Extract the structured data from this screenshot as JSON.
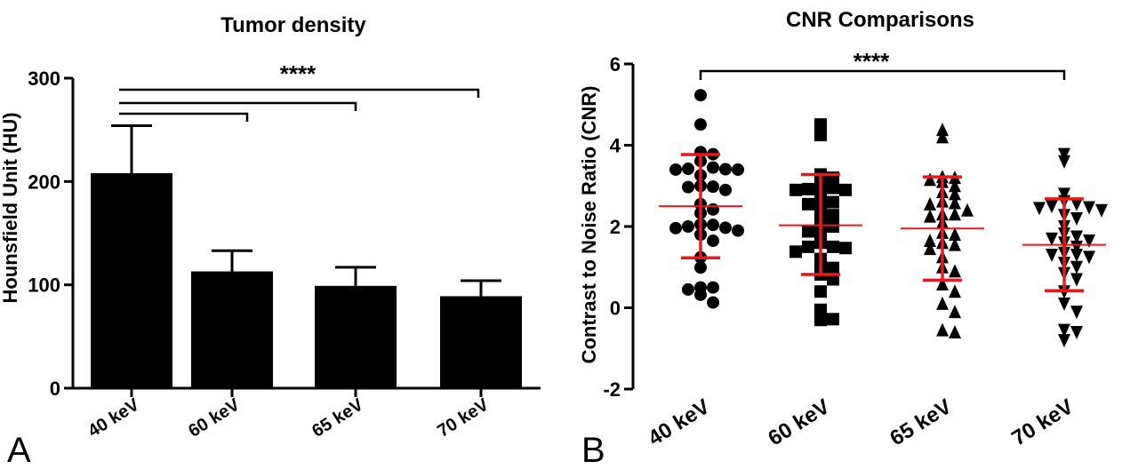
{
  "chart_data": [
    {
      "panel": "A",
      "type": "bar",
      "title": "Tumor density",
      "xlabel": "",
      "ylabel": "Hounsfield Unit (HU)",
      "ylim": [
        0,
        300
      ],
      "yticks": [
        "0",
        "100",
        "200",
        "300"
      ],
      "categories": [
        "40 keV",
        "60 keV",
        "65 keV",
        "70 keV"
      ],
      "values": [
        208,
        113,
        99,
        89
      ],
      "error_upper": [
        254,
        133,
        117,
        104
      ],
      "significance": [
        {
          "from": "40 keV",
          "to": "60 keV"
        },
        {
          "from": "40 keV",
          "to": "65 keV"
        },
        {
          "from": "40 keV",
          "to": "70 keV"
        }
      ],
      "significance_label": "****",
      "color": "#000000"
    },
    {
      "panel": "B",
      "type": "scatter",
      "title": "CNR Comparisons",
      "xlabel": "",
      "ylabel": "Contrast to Noise Ratio (CNR)",
      "ylim": [
        -2,
        6
      ],
      "yticks": [
        "-2",
        "0",
        "2",
        "4",
        "6"
      ],
      "categories": [
        "40 keV",
        "60 keV",
        "65 keV",
        "70 keV"
      ],
      "series": [
        {
          "marker": "circle",
          "mean": 2.5,
          "sd_low": 1.23,
          "sd_high": 3.77,
          "values": [
            5.23,
            4.51,
            3.83,
            3.78,
            3.61,
            3.45,
            3.42,
            3.41,
            3.4,
            3.4,
            3.26,
            3.0,
            2.98,
            2.97,
            2.9,
            2.55,
            2.42,
            2.33,
            2.05,
            2.04,
            2.0,
            1.97,
            1.96,
            1.9,
            1.8,
            1.65,
            1.24,
            0.99,
            0.5,
            0.5,
            0.45,
            0.32,
            0.13
          ]
        },
        {
          "marker": "square",
          "mean": 2.03,
          "sd_low": 0.82,
          "sd_high": 3.28,
          "values": [
            4.51,
            4.25,
            3.28,
            3.2,
            3.0,
            2.95,
            2.92,
            2.9,
            2.9,
            2.85,
            2.62,
            2.6,
            2.55,
            2.34,
            2.28,
            2.1,
            2.0,
            1.88,
            1.85,
            1.6,
            1.5,
            1.5,
            1.47,
            1.38,
            1.2,
            1.0,
            0.98,
            0.82,
            0.7,
            0.4,
            -0.05,
            -0.3,
            -0.28
          ]
        },
        {
          "marker": "triangle",
          "mean": 1.95,
          "sd_low": 0.68,
          "sd_high": 3.22,
          "values": [
            4.38,
            4.2,
            3.22,
            3.2,
            3.15,
            3.1,
            3.0,
            2.85,
            2.8,
            2.62,
            2.58,
            2.55,
            2.4,
            2.3,
            2.3,
            2.25,
            2.1,
            1.85,
            1.8,
            1.65,
            1.6,
            1.55,
            1.45,
            1.25,
            1.0,
            0.9,
            0.58,
            0.4,
            0.1,
            -0.1,
            -0.55,
            -0.6
          ]
        },
        {
          "marker": "triangle-down",
          "mean": 1.55,
          "sd_low": 0.42,
          "sd_high": 2.68,
          "values": [
            3.78,
            3.6,
            2.8,
            2.62,
            2.55,
            2.5,
            2.47,
            2.45,
            2.4,
            2.28,
            2.2,
            2.0,
            1.82,
            1.75,
            1.7,
            1.65,
            1.6,
            1.5,
            1.35,
            1.3,
            1.3,
            1.25,
            1.1,
            1.0,
            0.85,
            0.7,
            0.4,
            0.1,
            -0.1,
            -0.55,
            -0.6,
            -0.8
          ]
        }
      ],
      "significance": [
        {
          "from": "40 keV",
          "to": "70 keV"
        }
      ],
      "significance_label": "****",
      "marker_color": "#000000",
      "errorbar_color": "#e8191c"
    }
  ]
}
